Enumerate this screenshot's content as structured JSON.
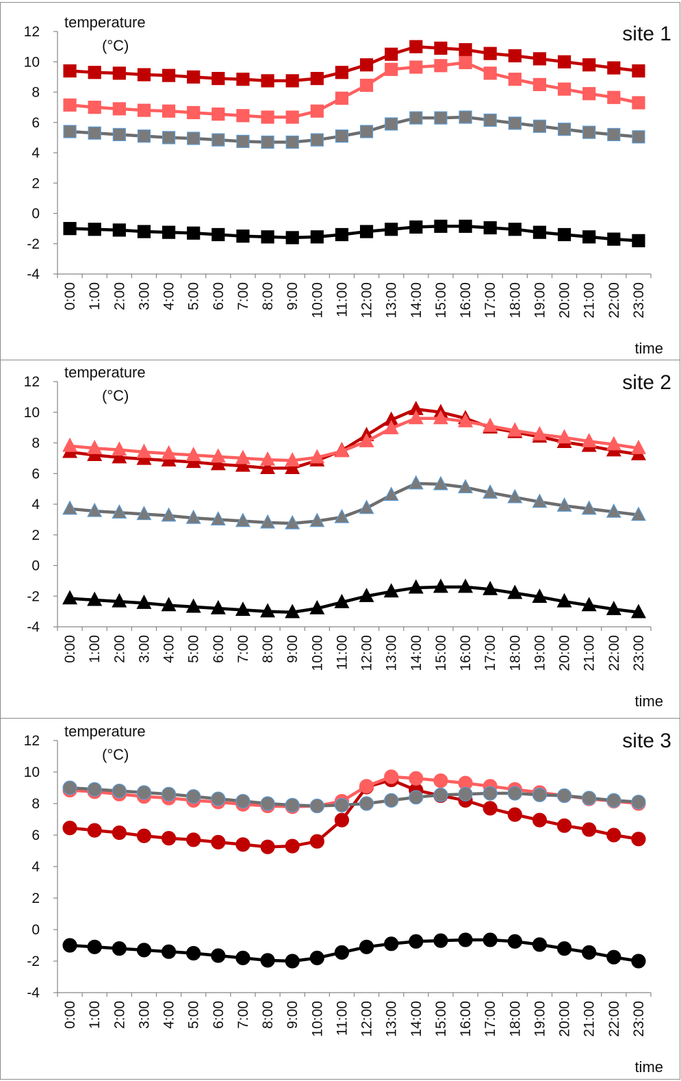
{
  "chart_data": [
    {
      "type": "line",
      "title": "site 1",
      "xlabel": "time",
      "ylabel": "temperature",
      "yunit": "(°C)",
      "ylim": [
        -4,
        12
      ],
      "yticks": [
        -4,
        -2,
        0,
        2,
        4,
        6,
        8,
        10,
        12
      ],
      "marker": "square",
      "categories": [
        "0:00",
        "1:00",
        "2:00",
        "3:00",
        "4:00",
        "5:00",
        "6:00",
        "7:00",
        "8:00",
        "9:00",
        "10:00",
        "11:00",
        "12:00",
        "13:00",
        "14:00",
        "15:00",
        "16:00",
        "17:00",
        "18:00",
        "19:00",
        "20:00",
        "21:00",
        "22:00",
        "23:00"
      ],
      "series": [
        {
          "color": "#c00000",
          "values": [
            9.4,
            9.3,
            9.25,
            9.15,
            9.1,
            9.0,
            8.9,
            8.85,
            8.75,
            8.75,
            8.9,
            9.3,
            9.8,
            10.5,
            11.0,
            10.9,
            10.8,
            10.55,
            10.4,
            10.2,
            10.0,
            9.8,
            9.6,
            9.4
          ]
        },
        {
          "color": "#ff5f5f",
          "values": [
            7.15,
            7.0,
            6.9,
            6.8,
            6.75,
            6.65,
            6.55,
            6.45,
            6.35,
            6.35,
            6.75,
            7.6,
            8.45,
            9.5,
            9.65,
            9.75,
            9.95,
            9.25,
            8.85,
            8.5,
            8.2,
            7.9,
            7.65,
            7.3
          ]
        },
        {
          "color": "#6d6d6d",
          "marker_fill": "#7a7a7a",
          "marker_stroke": "#5b9bd5",
          "values": [
            5.4,
            5.3,
            5.2,
            5.1,
            5.0,
            4.95,
            4.85,
            4.75,
            4.7,
            4.7,
            4.85,
            5.1,
            5.4,
            5.9,
            6.3,
            6.3,
            6.35,
            6.15,
            5.95,
            5.75,
            5.55,
            5.35,
            5.2,
            5.05
          ]
        },
        {
          "color": "#000000",
          "values": [
            -1.0,
            -1.05,
            -1.1,
            -1.2,
            -1.25,
            -1.3,
            -1.4,
            -1.5,
            -1.55,
            -1.6,
            -1.55,
            -1.4,
            -1.2,
            -1.05,
            -0.9,
            -0.85,
            -0.85,
            -0.95,
            -1.05,
            -1.25,
            -1.4,
            -1.55,
            -1.7,
            -1.8
          ]
        }
      ]
    },
    {
      "type": "line",
      "title": "site 2",
      "xlabel": "time",
      "ylabel": "temperature",
      "yunit": "(°C)",
      "ylim": [
        -4,
        12
      ],
      "yticks": [
        -4,
        -2,
        0,
        2,
        4,
        6,
        8,
        10,
        12
      ],
      "marker": "triangle",
      "categories": [
        "0:00",
        "1:00",
        "2:00",
        "3:00",
        "4:00",
        "5:00",
        "6:00",
        "7:00",
        "8:00",
        "9:00",
        "10:00",
        "11:00",
        "12:00",
        "13:00",
        "14:00",
        "15:00",
        "16:00",
        "17:00",
        "18:00",
        "19:00",
        "20:00",
        "21:00",
        "22:00",
        "23:00"
      ],
      "series": [
        {
          "color": "#c00000",
          "values": [
            7.4,
            7.2,
            7.05,
            6.95,
            6.85,
            6.75,
            6.6,
            6.5,
            6.35,
            6.35,
            6.85,
            7.5,
            8.5,
            9.5,
            10.2,
            10.0,
            9.6,
            9.0,
            8.7,
            8.4,
            8.05,
            7.8,
            7.5,
            7.25
          ]
        },
        {
          "color": "#ff5f5f",
          "values": [
            7.8,
            7.65,
            7.55,
            7.4,
            7.3,
            7.2,
            7.1,
            7.0,
            6.9,
            6.85,
            7.05,
            7.45,
            8.1,
            8.95,
            9.6,
            9.6,
            9.4,
            9.1,
            8.8,
            8.55,
            8.35,
            8.1,
            7.9,
            7.65
          ]
        },
        {
          "color": "#6d6d6d",
          "marker_fill": "#7a7a7a",
          "marker_stroke": "#5b9bd5",
          "values": [
            3.7,
            3.55,
            3.45,
            3.35,
            3.25,
            3.1,
            3.0,
            2.9,
            2.8,
            2.75,
            2.9,
            3.15,
            3.75,
            4.6,
            5.35,
            5.3,
            5.1,
            4.75,
            4.45,
            4.15,
            3.9,
            3.7,
            3.5,
            3.3
          ]
        },
        {
          "color": "#000000",
          "values": [
            -2.15,
            -2.25,
            -2.35,
            -2.45,
            -2.6,
            -2.7,
            -2.8,
            -2.9,
            -3.0,
            -3.05,
            -2.8,
            -2.4,
            -2.0,
            -1.7,
            -1.45,
            -1.4,
            -1.4,
            -1.55,
            -1.8,
            -2.05,
            -2.35,
            -2.6,
            -2.85,
            -3.05
          ]
        }
      ]
    },
    {
      "type": "line",
      "title": "site 3",
      "xlabel": "time",
      "ylabel": "temperature",
      "yunit": "(°C)",
      "ylim": [
        -4,
        12
      ],
      "yticks": [
        -4,
        -2,
        0,
        2,
        4,
        6,
        8,
        10,
        12
      ],
      "marker": "circle",
      "categories": [
        "0:00",
        "1:00",
        "2:00",
        "3:00",
        "4:00",
        "5:00",
        "6:00",
        "7:00",
        "8:00",
        "9:00",
        "10:00",
        "11:00",
        "12:00",
        "13:00",
        "14:00",
        "15:00",
        "16:00",
        "17:00",
        "18:00",
        "19:00",
        "20:00",
        "21:00",
        "22:00",
        "23:00"
      ],
      "series": [
        {
          "color": "#c00000",
          "values": [
            6.45,
            6.3,
            6.15,
            5.95,
            5.8,
            5.7,
            5.55,
            5.4,
            5.25,
            5.3,
            5.6,
            6.95,
            9.05,
            9.5,
            8.85,
            8.5,
            8.2,
            7.7,
            7.3,
            6.95,
            6.6,
            6.35,
            6.0,
            5.75
          ]
        },
        {
          "color": "#ff5f5f",
          "values": [
            8.85,
            8.75,
            8.6,
            8.45,
            8.35,
            8.2,
            8.1,
            7.95,
            7.85,
            7.8,
            7.85,
            8.15,
            9.1,
            9.7,
            9.6,
            9.45,
            9.3,
            9.1,
            8.9,
            8.7,
            8.5,
            8.3,
            8.15,
            8.0
          ]
        },
        {
          "color": "#6d6d6d",
          "marker_fill": "#7a7a7a",
          "marker_stroke": "#5b9bd5",
          "values": [
            9.0,
            8.9,
            8.8,
            8.7,
            8.6,
            8.45,
            8.3,
            8.15,
            8.0,
            7.9,
            7.85,
            7.9,
            8.0,
            8.2,
            8.4,
            8.55,
            8.6,
            8.65,
            8.65,
            8.55,
            8.5,
            8.35,
            8.2,
            8.1
          ]
        },
        {
          "color": "#000000",
          "values": [
            -1.0,
            -1.1,
            -1.2,
            -1.3,
            -1.4,
            -1.5,
            -1.65,
            -1.8,
            -1.95,
            -2.0,
            -1.8,
            -1.45,
            -1.1,
            -0.9,
            -0.75,
            -0.7,
            -0.65,
            -0.65,
            -0.75,
            -0.95,
            -1.2,
            -1.45,
            -1.75,
            -2.0
          ]
        }
      ]
    }
  ]
}
